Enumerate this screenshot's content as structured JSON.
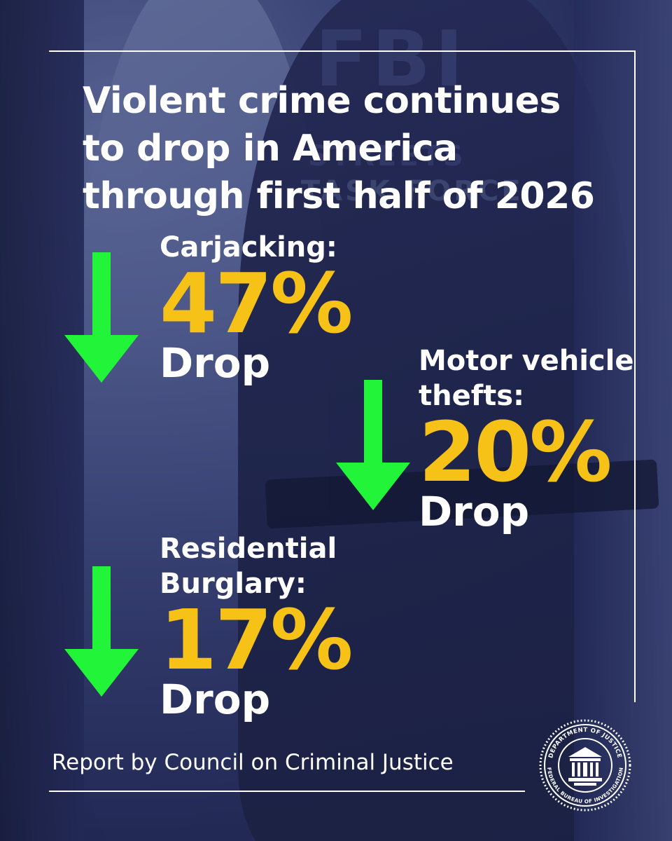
{
  "headline": "Violent crime continues to drop in America through first half of 2026",
  "background": {
    "shirt_text": "FBI",
    "shirt_sub_1": "STREETS",
    "shirt_sub_2": "TASK FORCE"
  },
  "stats": [
    {
      "label": "Carjacking:",
      "value": "47%",
      "drop": "Drop"
    },
    {
      "label": "Motor vehicle\nthefts:",
      "value": "20%",
      "drop": "Drop"
    },
    {
      "label": "Residential\nBurglary:",
      "value": "17%",
      "drop": "Drop"
    }
  ],
  "source": "Report by Council on Criminal Justice",
  "seal": {
    "text_top": "DEPARTMENT OF JUSTICE",
    "text_bottom": "FEDERAL BUREAU OF INVESTIGATION"
  },
  "colors": {
    "accent_yellow": "#f7c218",
    "arrow_green": "#22f43a",
    "text_white": "#ffffff",
    "background_blue": "#232a4a"
  },
  "icons": {
    "arrow": "down-arrow-icon",
    "seal": "fbi-seal-icon"
  }
}
